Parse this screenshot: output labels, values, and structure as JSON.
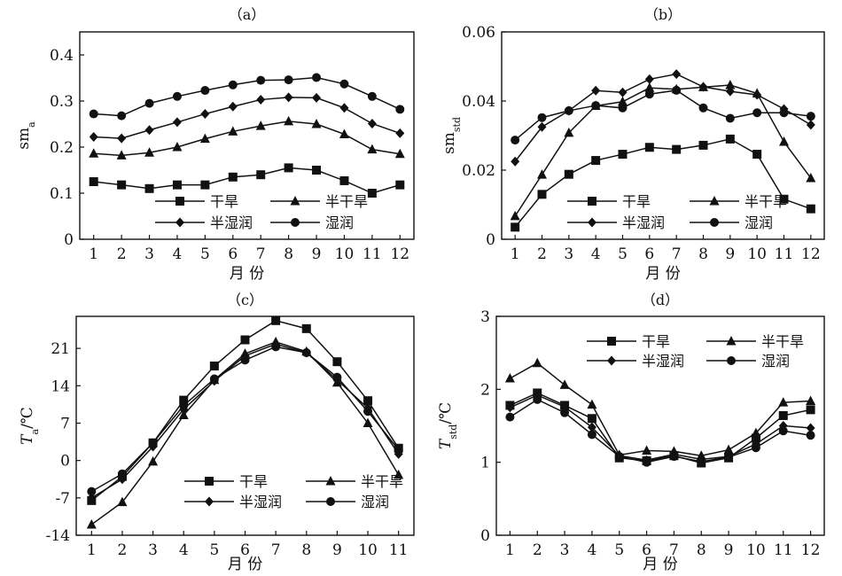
{
  "chart_data": [
    {
      "panel_label": "（a）",
      "type": "line",
      "x": [
        1,
        2,
        3,
        4,
        5,
        6,
        7,
        8,
        9,
        10,
        11,
        12
      ],
      "xticks": [
        "1",
        "2",
        "3",
        "4",
        "5",
        "6",
        "7",
        "8",
        "9",
        "10",
        "11",
        "12"
      ],
      "yticks": [
        "0",
        "0.1",
        "0.2",
        "0.3",
        "0.4"
      ],
      "ylim": [
        0,
        0.45
      ],
      "xlabel": "月  份",
      "ylabel_main": "sm",
      "ylabel_sub": "a",
      "ylabel_unit": "",
      "legend": {
        "position": "bottom-center",
        "rows": [
          [
            0,
            1
          ],
          [
            2,
            3
          ]
        ]
      },
      "series": [
        {
          "name": "干旱",
          "marker": "square",
          "values": [
            0.125,
            0.118,
            0.11,
            0.118,
            0.118,
            0.135,
            0.14,
            0.155,
            0.15,
            0.127,
            0.1,
            0.118
          ]
        },
        {
          "name": "半干旱",
          "marker": "triangle",
          "values": [
            0.186,
            0.182,
            0.188,
            0.2,
            0.218,
            0.234,
            0.246,
            0.256,
            0.25,
            0.228,
            0.195,
            0.185
          ]
        },
        {
          "name": "半湿润",
          "marker": "diamond",
          "values": [
            0.222,
            0.219,
            0.237,
            0.254,
            0.272,
            0.288,
            0.303,
            0.308,
            0.307,
            0.285,
            0.251,
            0.23
          ]
        },
        {
          "name": "湿润",
          "marker": "circle",
          "values": [
            0.272,
            0.268,
            0.295,
            0.31,
            0.323,
            0.335,
            0.345,
            0.346,
            0.351,
            0.337,
            0.31,
            0.282
          ]
        }
      ]
    },
    {
      "panel_label": "（b）",
      "type": "line",
      "x": [
        1,
        2,
        3,
        4,
        5,
        6,
        7,
        8,
        9,
        10,
        11,
        12
      ],
      "xticks": [
        "1",
        "2",
        "3",
        "4",
        "5",
        "6",
        "7",
        "8",
        "9",
        "10",
        "11",
        "12"
      ],
      "yticks": [
        "0",
        "0.02",
        "0.04",
        "0.06"
      ],
      "ylim": [
        0,
        0.06
      ],
      "xlabel": "月  份",
      "ylabel_main": "sm",
      "ylabel_sub": "std",
      "ylabel_unit": "",
      "legend": {
        "position": "bottom-center",
        "rows": [
          [
            0,
            1
          ],
          [
            2,
            3
          ]
        ]
      },
      "series": [
        {
          "name": "干旱",
          "marker": "square",
          "values": [
            0.0035,
            0.013,
            0.0188,
            0.0228,
            0.0246,
            0.0266,
            0.026,
            0.0272,
            0.029,
            0.0246,
            0.0116,
            0.0088
          ]
        },
        {
          "name": "半干旱",
          "marker": "triangle",
          "values": [
            0.0067,
            0.0187,
            0.0308,
            0.0386,
            0.0398,
            0.0438,
            0.0434,
            0.044,
            0.0446,
            0.0422,
            0.0282,
            0.0177
          ]
        },
        {
          "name": "半湿润",
          "marker": "diamond",
          "values": [
            0.0225,
            0.0325,
            0.0372,
            0.043,
            0.0425,
            0.0463,
            0.0478,
            0.0441,
            0.0428,
            0.0418,
            0.0377,
            0.0331
          ]
        },
        {
          "name": "湿润",
          "marker": "circle",
          "values": [
            0.0287,
            0.0352,
            0.0372,
            0.0387,
            0.038,
            0.042,
            0.0431,
            0.038,
            0.035,
            0.0366,
            0.0366,
            0.0356
          ]
        }
      ]
    },
    {
      "panel_label": "（c）",
      "type": "line",
      "x": [
        1,
        2,
        3,
        4,
        5,
        6,
        7,
        8,
        9,
        10,
        11
      ],
      "xticks": [
        "1",
        "2",
        "3",
        "4",
        "5",
        "6",
        "7",
        "8",
        "9",
        "10",
        "11"
      ],
      "yticks": [
        "-14",
        "-7",
        "0",
        "7",
        "14",
        "21"
      ],
      "ylim": [
        -14,
        27
      ],
      "xlabel": "月  份",
      "ylabel_main": "T",
      "ylabel_sub": "a",
      "ylabel_unit": "/℃",
      "legend": {
        "position": "bottom-right",
        "rows": [
          [
            0,
            1
          ],
          [
            2,
            3
          ]
        ]
      },
      "series": [
        {
          "name": "干旱",
          "marker": "square",
          "values": [
            -7.5,
            -3.0,
            3.3,
            11.3,
            17.7,
            22.6,
            26.2,
            24.7,
            18.5,
            11.2,
            2.3
          ]
        },
        {
          "name": "半干旱",
          "marker": "triangle",
          "values": [
            -12.0,
            -7.8,
            -0.2,
            8.5,
            15.1,
            20.0,
            22.2,
            20.4,
            14.6,
            7.0,
            -2.7
          ]
        },
        {
          "name": "半湿润",
          "marker": "diamond",
          "values": [
            -7.0,
            -3.5,
            2.6,
            9.6,
            14.9,
            19.6,
            21.8,
            20.2,
            15.1,
            9.8,
            1.2
          ]
        },
        {
          "name": "湿润",
          "marker": "circle",
          "values": [
            -5.8,
            -2.5,
            3.3,
            10.3,
            15.3,
            18.8,
            21.3,
            20.2,
            15.6,
            9.2,
            2.0
          ]
        }
      ]
    },
    {
      "panel_label": "（d）",
      "type": "line",
      "x": [
        1,
        2,
        3,
        4,
        5,
        6,
        7,
        8,
        9,
        10,
        11,
        12
      ],
      "xticks": [
        "1",
        "2",
        "3",
        "4",
        "5",
        "6",
        "7",
        "8",
        "9",
        "10",
        "11",
        "12"
      ],
      "yticks": [
        "0",
        "1",
        "2",
        "3"
      ],
      "ylim": [
        0,
        3
      ],
      "xlabel": "月  份",
      "ylabel_main": "T",
      "ylabel_sub": "std",
      "ylabel_unit": "/℃",
      "legend": {
        "position": "top-center",
        "rows": [
          [
            0,
            1
          ],
          [
            2,
            3
          ]
        ]
      },
      "series": [
        {
          "name": "干旱",
          "marker": "square",
          "values": [
            1.78,
            1.95,
            1.78,
            1.6,
            1.06,
            1.02,
            1.09,
            0.99,
            1.06,
            1.33,
            1.64,
            1.72
          ]
        },
        {
          "name": "半干旱",
          "marker": "triangle",
          "values": [
            2.15,
            2.36,
            2.06,
            1.79,
            1.1,
            1.16,
            1.15,
            1.09,
            1.17,
            1.4,
            1.82,
            1.84
          ]
        },
        {
          "name": "半湿润",
          "marker": "diamond",
          "values": [
            1.75,
            1.92,
            1.76,
            1.48,
            1.09,
            1.03,
            1.11,
            1.04,
            1.08,
            1.25,
            1.5,
            1.47
          ]
        },
        {
          "name": "湿润",
          "marker": "circle",
          "values": [
            1.62,
            1.86,
            1.68,
            1.38,
            1.08,
            1.0,
            1.08,
            1.01,
            1.07,
            1.2,
            1.43,
            1.37
          ]
        }
      ]
    }
  ]
}
